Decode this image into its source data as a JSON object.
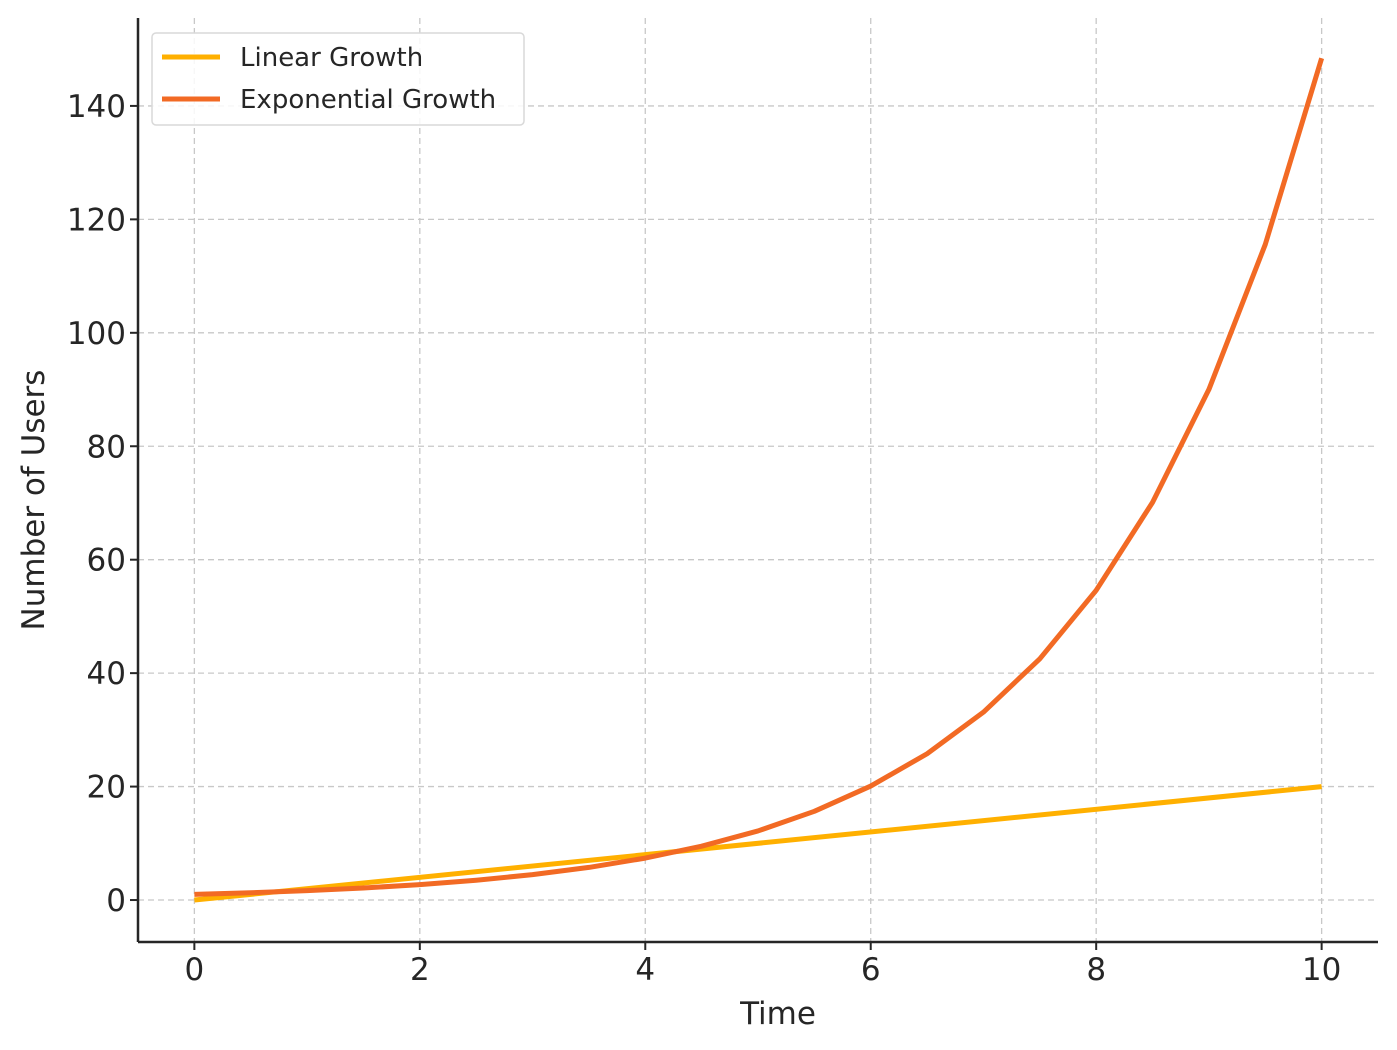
{
  "chart_data": {
    "type": "line",
    "title": "",
    "xlabel": "Time",
    "ylabel": "Number of Users",
    "xlim": [
      -0.5,
      10.5
    ],
    "ylim": [
      -7.4,
      155.5
    ],
    "x_ticks": [
      0,
      2,
      4,
      6,
      8,
      10
    ],
    "y_ticks": [
      0,
      20,
      40,
      60,
      80,
      100,
      120,
      140
    ],
    "grid": true,
    "legend": "top-left",
    "series": [
      {
        "name": "Linear Growth",
        "color": "#FFB000",
        "x": [
          0,
          10
        ],
        "y": [
          0,
          20
        ]
      },
      {
        "name": "Exponential Growth",
        "color": "#F26A24",
        "x": [
          0,
          0.5,
          1,
          1.5,
          2,
          2.5,
          3,
          3.5,
          4,
          4.5,
          5,
          5.5,
          6,
          6.5,
          7,
          7.5,
          8,
          8.5,
          9,
          9.5,
          10
        ],
        "y": [
          1.0,
          1.28,
          1.65,
          2.12,
          2.72,
          3.49,
          4.48,
          5.75,
          7.39,
          9.49,
          12.18,
          15.64,
          20.09,
          25.79,
          33.12,
          42.52,
          54.6,
          70.11,
          90.02,
          115.58,
          148.41
        ]
      }
    ]
  }
}
